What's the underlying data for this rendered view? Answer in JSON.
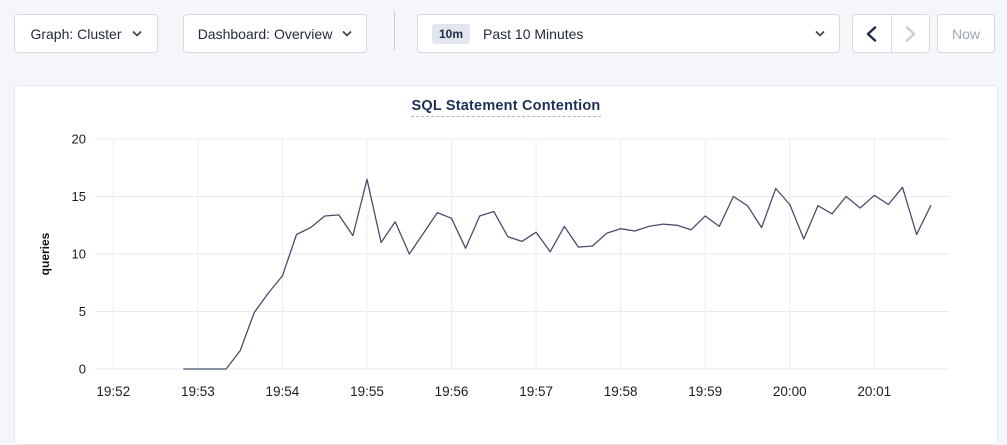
{
  "toolbar": {
    "graph_selector": "Graph: Cluster",
    "dashboard_selector": "Dashboard: Overview",
    "time_range": {
      "badge": "10m",
      "label": "Past 10 Minutes"
    },
    "now_label": "Now"
  },
  "chart": {
    "title": "SQL Statement Contention"
  },
  "colors": {
    "line": "#46506a",
    "title": "#1c3057",
    "grid_h": "#e9eaee",
    "grid_v": "#edeef3",
    "tick_text": "#1d1d1f",
    "enabled_arrow": "#1e2a47",
    "disabled_arrow": "#c6ccd8",
    "chevron": "#39404f"
  },
  "chart_data": {
    "type": "line",
    "title": "SQL Statement Contention",
    "xlabel": "",
    "ylabel": "queries",
    "ylim": [
      0,
      20
    ],
    "y_ticks": [
      0,
      5,
      10,
      15,
      20
    ],
    "x_ticks": [
      "19:52",
      "19:53",
      "19:54",
      "19:55",
      "19:56",
      "19:57",
      "19:58",
      "19:59",
      "20:00",
      "20:01"
    ],
    "x_window": {
      "start": "19:51:47",
      "end": "20:01:53"
    },
    "grid": true,
    "legend": "none",
    "series": [
      {
        "name": "queries",
        "start_time": "19:52:50",
        "interval_seconds": 10,
        "values": [
          0,
          0,
          0,
          0,
          1.6,
          4.9,
          6.6,
          8.1,
          11.7,
          12.3,
          13.3,
          13.4,
          11.6,
          16.5,
          11.0,
          12.8,
          10.0,
          11.8,
          13.6,
          13.1,
          10.5,
          13.3,
          13.7,
          11.5,
          11.1,
          11.9,
          10.2,
          12.4,
          10.6,
          10.7,
          11.8,
          12.2,
          12.0,
          12.4,
          12.6,
          12.5,
          12.1,
          13.3,
          12.4,
          15.0,
          14.2,
          12.3,
          15.7,
          14.3,
          11.3,
          14.2,
          13.5,
          15.0,
          14.0,
          15.1,
          14.3,
          15.8,
          11.7,
          14.2
        ]
      }
    ]
  }
}
